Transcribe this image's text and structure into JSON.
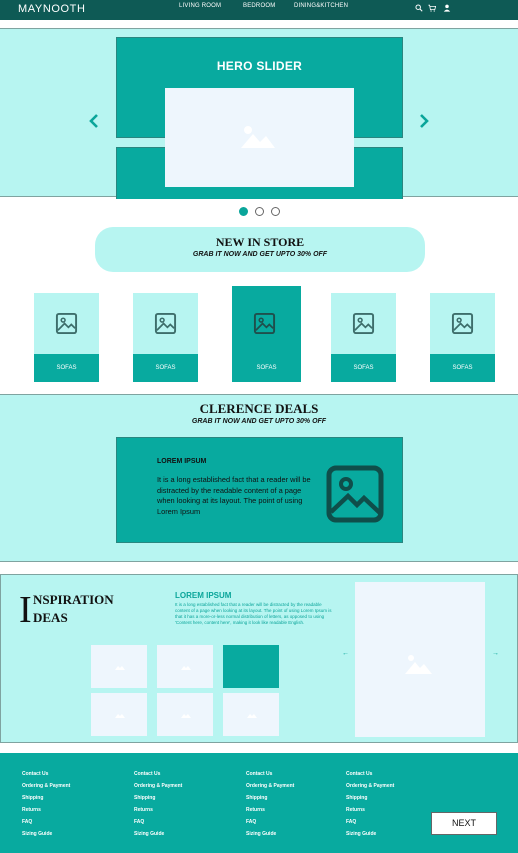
{
  "header": {
    "logo": "MAYNOOTH",
    "nav": [
      "LIVING ROOM",
      "BEDROOM",
      "DINING&KITCHEN"
    ],
    "icons": [
      "search-icon",
      "cart-icon",
      "user-icon"
    ],
    "bg_color": "#0e5a55"
  },
  "hero": {
    "title": "HERO SLIDER",
    "dots": 3,
    "active_dot": 0
  },
  "new_in_store": {
    "title": "NEW IN STORE",
    "subtitle": "GRAB IT NOW AND GET UPTO 30% OFF",
    "cards": [
      {
        "label": "SOFAS"
      },
      {
        "label": "SOFAS"
      },
      {
        "label": "SOFAS"
      },
      {
        "label": "SOFAS"
      },
      {
        "label": "SOFAS"
      }
    ],
    "active_card": 2
  },
  "clearance": {
    "title": "CLERENCE DEALS",
    "subtitle": "GRAB IT NOW AND GET UPTO 30% OFF",
    "heading": "LOREM IPSUM",
    "text": "It is a long established fact that a reader will be distracted by the readable content of a page when looking at its layout. The point of using Lorem Ipsum"
  },
  "inspiration": {
    "letter_i": "I",
    "word1": "NSPIRATION",
    "word2": "DEAS",
    "heading": "LOREM IPSUM",
    "text": "It is a long established fact that a reader will be distracted by the readable content of a page when looking at its layout. The point of using Lorem Ipsum is that it has a more-or-less normal distribution of letters, as opposed to using 'Content here, content here', making it look like readable English.",
    "thumbs": 6,
    "active_thumb": 2,
    "prev": "←",
    "next": "→"
  },
  "footer": {
    "columns": [
      [
        "Contact Us",
        "Ordering & Payment",
        "Shipping",
        "Returns",
        "FAQ",
        "Sizing Guide"
      ],
      [
        "Contact Us",
        "Ordering & Payment",
        "Shipping",
        "Returns",
        "FAQ",
        "Sizing Guide"
      ],
      [
        "Contact Us",
        "Ordering & Payment",
        "Shipping",
        "Returns",
        "FAQ",
        "Sizing Guide"
      ],
      [
        "Contact Us",
        "Ordering & Payment",
        "Shipping",
        "Returns",
        "FAQ",
        "Sizing Guide"
      ]
    ],
    "next_label": "NEXT"
  },
  "colors": {
    "accent": "#08aa9f",
    "light": "#b7f5f1",
    "image_placeholder": "#eef6fd"
  }
}
